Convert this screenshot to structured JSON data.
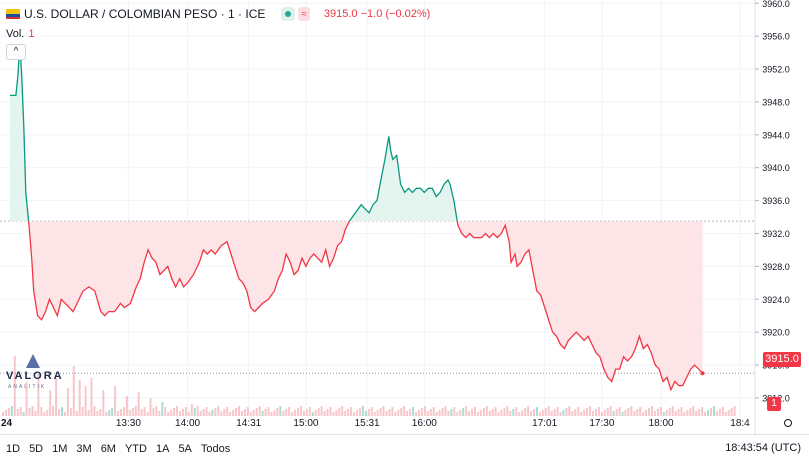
{
  "header": {
    "symbol": "U.S. DOLLAR / COLOMBIAN PESO · 1 · ICE",
    "currency_badge": "≈",
    "price_change": "3915.0 −1.0 (−0.02%)",
    "vol_label": "Vol.",
    "vol_value": "1",
    "collapse": "^"
  },
  "left_edge_label": "24",
  "logo": {
    "word": "VALORA",
    "sub": "ANALITIK"
  },
  "price_tag": "3915.0",
  "volume_tag": "1",
  "timeframes": [
    "1D",
    "5D",
    "1M",
    "3M",
    "6M",
    "YTD",
    "1A",
    "5A",
    "Todos"
  ],
  "clock": "18:43:54 (UTC)",
  "colors": {
    "up": "#089981",
    "down": "#f23645",
    "upFill": "#e4f4ef",
    "downFill": "#fde4e6",
    "volume": "#f7c6ca"
  },
  "chart_data": {
    "type": "line",
    "title": "U.S. DOLLAR / COLOMBIAN PESO · 1 · ICE",
    "baseline": 3933.5,
    "last": 3915.0,
    "ylim": [
      3909.8,
      3960.4
    ],
    "y_ticks": [
      3960.0,
      3956.0,
      3952.0,
      3948.0,
      3944.0,
      3940.0,
      3936.0,
      3932.0,
      3928.0,
      3924.0,
      3920.0,
      3916.0,
      3912.0
    ],
    "x_ticks": [
      {
        "label": "13:30",
        "m": 60
      },
      {
        "label": "14:00",
        "m": 90
      },
      {
        "label": "14:31",
        "m": 121
      },
      {
        "label": "15:00",
        "m": 150
      },
      {
        "label": "15:31",
        "m": 181
      },
      {
        "label": "16:00",
        "m": 210
      },
      {
        "label": "17:01",
        "m": 271
      },
      {
        "label": "17:30",
        "m": 300
      },
      {
        "label": "18:00",
        "m": 330
      },
      {
        "label": "18:4",
        "m": 370
      }
    ],
    "price": [
      [
        0,
        3948.8
      ],
      [
        3,
        3948.8
      ],
      [
        4,
        3951.2
      ],
      [
        5,
        3955.0
      ],
      [
        6,
        3951.0
      ],
      [
        7,
        3945.0
      ],
      [
        8,
        3937.0
      ],
      [
        9,
        3934.5
      ],
      [
        10,
        3932.0
      ],
      [
        11,
        3929.0
      ],
      [
        12,
        3925.0
      ],
      [
        14,
        3922.0
      ],
      [
        16,
        3921.5
      ],
      [
        18,
        3922.5
      ],
      [
        20,
        3924.0
      ],
      [
        22,
        3923.0
      ],
      [
        24,
        3922.0
      ],
      [
        26,
        3924.0
      ],
      [
        28,
        3923.5
      ],
      [
        30,
        3923.0
      ],
      [
        32,
        3922.5
      ],
      [
        34,
        3923.5
      ],
      [
        37,
        3925.0
      ],
      [
        40,
        3925.5
      ],
      [
        43,
        3925.0
      ],
      [
        46,
        3922.5
      ],
      [
        48,
        3922.0
      ],
      [
        50,
        3922.5
      ],
      [
        53,
        3922.5
      ],
      [
        56,
        3923.5
      ],
      [
        58,
        3923.0
      ],
      [
        61,
        3923.5
      ],
      [
        64,
        3925.5
      ],
      [
        66,
        3926.5
      ],
      [
        68,
        3928.5
      ],
      [
        70,
        3930.0
      ],
      [
        72,
        3929.0
      ],
      [
        74,
        3928.5
      ],
      [
        76,
        3927.0
      ],
      [
        78,
        3927.5
      ],
      [
        80,
        3928.0
      ],
      [
        82,
        3926.5
      ],
      [
        84,
        3925.5
      ],
      [
        86,
        3926.5
      ],
      [
        88,
        3925.5
      ],
      [
        90,
        3926.0
      ],
      [
        93,
        3927.0
      ],
      [
        96,
        3928.5
      ],
      [
        98,
        3930.0
      ],
      [
        100,
        3929.5
      ],
      [
        102,
        3930.0
      ],
      [
        104,
        3929.5
      ],
      [
        107,
        3930.5
      ],
      [
        110,
        3931.0
      ],
      [
        112,
        3929.5
      ],
      [
        114,
        3928.0
      ],
      [
        116,
        3926.5
      ],
      [
        118,
        3926.0
      ],
      [
        120,
        3925.0
      ],
      [
        122,
        3923.0
      ],
      [
        124,
        3922.5
      ],
      [
        126,
        3923.0
      ],
      [
        128,
        3923.5
      ],
      [
        131,
        3924.0
      ],
      [
        134,
        3925.0
      ],
      [
        136,
        3926.5
      ],
      [
        138,
        3927.5
      ],
      [
        140,
        3929.5
      ],
      [
        142,
        3928.5
      ],
      [
        144,
        3927.0
      ],
      [
        146,
        3927.5
      ],
      [
        148,
        3929.0
      ],
      [
        150,
        3928.0
      ],
      [
        152,
        3929.0
      ],
      [
        154,
        3929.5
      ],
      [
        156,
        3929.0
      ],
      [
        158,
        3928.5
      ],
      [
        160,
        3930.0
      ],
      [
        162,
        3928.0
      ],
      [
        164,
        3929.0
      ],
      [
        166,
        3930.5
      ],
      [
        168,
        3931.0
      ],
      [
        170,
        3932.5
      ],
      [
        172,
        3933.5
      ],
      [
        175,
        3934.5
      ],
      [
        178,
        3935.5
      ],
      [
        180,
        3935.0
      ],
      [
        182,
        3934.5
      ],
      [
        184,
        3935.5
      ],
      [
        186,
        3936.0
      ],
      [
        188,
        3938.5
      ],
      [
        190,
        3941.0
      ],
      [
        192,
        3943.8
      ],
      [
        193,
        3942.0
      ],
      [
        194,
        3941.0
      ],
      [
        196,
        3941.5
      ],
      [
        198,
        3938.0
      ],
      [
        200,
        3937.0
      ],
      [
        202,
        3937.5
      ],
      [
        204,
        3937.0
      ],
      [
        206,
        3937.5
      ],
      [
        208,
        3937.5
      ],
      [
        210,
        3937.0
      ],
      [
        212,
        3937.5
      ],
      [
        214,
        3937.5
      ],
      [
        216,
        3936.5
      ],
      [
        218,
        3937.0
      ],
      [
        220,
        3938.0
      ],
      [
        222,
        3938.5
      ],
      [
        223,
        3938.0
      ],
      [
        225,
        3936.0
      ],
      [
        227,
        3933.0
      ],
      [
        229,
        3932.0
      ],
      [
        231,
        3931.5
      ],
      [
        233,
        3932.0
      ],
      [
        235,
        3931.5
      ],
      [
        237,
        3931.5
      ],
      [
        239,
        3931.5
      ],
      [
        241,
        3932.0
      ],
      [
        243,
        3931.5
      ],
      [
        245,
        3932.0
      ],
      [
        247,
        3931.5
      ],
      [
        249,
        3932.0
      ],
      [
        251,
        3933.0
      ],
      [
        253,
        3931.0
      ],
      [
        254,
        3928.5
      ],
      [
        256,
        3929.5
      ],
      [
        257,
        3928.0
      ],
      [
        259,
        3928.5
      ],
      [
        261,
        3929.5
      ],
      [
        263,
        3930.0
      ],
      [
        265,
        3927.5
      ],
      [
        267,
        3925.0
      ],
      [
        269,
        3924.5
      ],
      [
        271,
        3923.0
      ],
      [
        273,
        3921.5
      ],
      [
        275,
        3920.0
      ],
      [
        277,
        3919.5
      ],
      [
        279,
        3918.5
      ],
      [
        281,
        3918.0
      ],
      [
        283,
        3919.0
      ],
      [
        285,
        3919.5
      ],
      [
        287,
        3920.0
      ],
      [
        289,
        3919.5
      ],
      [
        291,
        3919.0
      ],
      [
        293,
        3919.5
      ],
      [
        295,
        3918.5
      ],
      [
        297,
        3917.5
      ],
      [
        299,
        3917.0
      ],
      [
        301,
        3915.5
      ],
      [
        303,
        3914.5
      ],
      [
        305,
        3914.0
      ],
      [
        307,
        3915.5
      ],
      [
        309,
        3915.5
      ],
      [
        311,
        3917.0
      ],
      [
        313,
        3916.5
      ],
      [
        315,
        3917.0
      ],
      [
        317,
        3918.0
      ],
      [
        319,
        3919.5
      ],
      [
        321,
        3918.0
      ],
      [
        323,
        3918.5
      ],
      [
        325,
        3917.5
      ],
      [
        327,
        3916.0
      ],
      [
        329,
        3915.5
      ],
      [
        331,
        3914.0
      ],
      [
        333,
        3914.5
      ],
      [
        335,
        3913.0
      ],
      [
        337,
        3914.0
      ],
      [
        339,
        3913.5
      ],
      [
        341,
        3913.5
      ],
      [
        343,
        3914.5
      ],
      [
        345,
        3915.5
      ],
      [
        347,
        3916.0
      ],
      [
        349,
        3915.5
      ],
      [
        351,
        3915.0
      ]
    ]
  }
}
